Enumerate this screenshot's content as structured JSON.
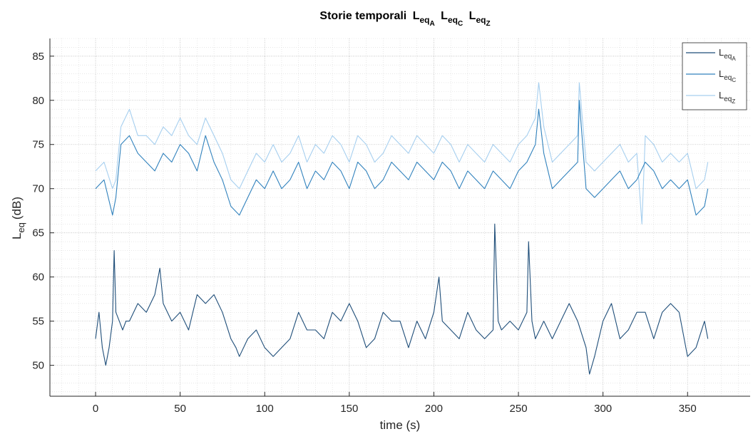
{
  "chart_data": {
    "type": "line",
    "title": {
      "prefix": "Storie temporali",
      "terms": [
        {
          "base": "L",
          "sub": "eq",
          "subsub": "A"
        },
        {
          "base": "L",
          "sub": "eq",
          "subsub": "C"
        },
        {
          "base": "L",
          "sub": "eq",
          "subsub": "Z"
        }
      ]
    },
    "xlabel": "time (s)",
    "ylabel": {
      "base": "L",
      "sub": "eq",
      "unit": "(dB)"
    },
    "xlim": [
      -27,
      387
    ],
    "ylim": [
      46.5,
      87
    ],
    "xticks": [
      0,
      50,
      100,
      150,
      200,
      250,
      300,
      350
    ],
    "yticks": [
      50,
      55,
      60,
      65,
      70,
      75,
      80,
      85
    ],
    "grid": true,
    "minor_grid": true,
    "legend_position": "top-right",
    "series": [
      {
        "name": {
          "base": "L",
          "sub": "eq",
          "subsub": "A"
        },
        "color": "#1f4e79",
        "x": [
          0,
          2,
          4,
          6,
          8,
          10,
          11,
          12,
          14,
          16,
          18,
          20,
          25,
          30,
          35,
          38,
          40,
          45,
          50,
          55,
          60,
          65,
          70,
          75,
          80,
          83,
          85,
          90,
          95,
          100,
          105,
          110,
          115,
          120,
          125,
          130,
          135,
          140,
          145,
          150,
          155,
          160,
          165,
          170,
          175,
          180,
          185,
          190,
          195,
          200,
          203,
          205,
          210,
          215,
          220,
          225,
          230,
          235,
          236,
          238,
          240,
          245,
          250,
          255,
          256,
          258,
          260,
          265,
          270,
          275,
          280,
          285,
          290,
          292,
          295,
          300,
          305,
          310,
          315,
          320,
          325,
          330,
          335,
          340,
          345,
          350,
          355,
          360,
          362
        ],
        "y": [
          53,
          56,
          52,
          50,
          52,
          55,
          63,
          56,
          55,
          54,
          55,
          55,
          57,
          56,
          58,
          61,
          57,
          55,
          56,
          54,
          58,
          57,
          58,
          56,
          53,
          52,
          51,
          53,
          54,
          52,
          51,
          52,
          53,
          56,
          54,
          54,
          53,
          56,
          55,
          57,
          55,
          52,
          53,
          56,
          55,
          55,
          52,
          55,
          53,
          56,
          60,
          55,
          54,
          53,
          56,
          54,
          53,
          54,
          66,
          55,
          54,
          55,
          54,
          56,
          64,
          55,
          53,
          55,
          53,
          55,
          57,
          55,
          52,
          49,
          51,
          55,
          57,
          53,
          54,
          56,
          56,
          53,
          56,
          57,
          56,
          51,
          52,
          55,
          53
        ]
      },
      {
        "name": {
          "base": "L",
          "sub": "eq",
          "subsub": "C"
        },
        "color": "#3182bd",
        "x": [
          0,
          5,
          10,
          12,
          15,
          20,
          25,
          30,
          35,
          40,
          45,
          50,
          55,
          60,
          65,
          70,
          75,
          80,
          85,
          90,
          95,
          100,
          105,
          110,
          115,
          120,
          125,
          130,
          135,
          140,
          145,
          150,
          155,
          160,
          165,
          170,
          175,
          180,
          185,
          190,
          195,
          200,
          205,
          210,
          215,
          220,
          225,
          230,
          235,
          240,
          245,
          250,
          255,
          260,
          262,
          265,
          270,
          275,
          280,
          285,
          286,
          290,
          295,
          300,
          305,
          310,
          315,
          320,
          325,
          330,
          335,
          340,
          345,
          350,
          355,
          360,
          362
        ],
        "y": [
          70,
          71,
          67,
          69,
          75,
          76,
          74,
          73,
          72,
          74,
          73,
          75,
          74,
          72,
          76,
          73,
          71,
          68,
          67,
          69,
          71,
          70,
          72,
          70,
          71,
          73,
          70,
          72,
          71,
          73,
          72,
          70,
          73,
          72,
          70,
          71,
          73,
          72,
          71,
          73,
          72,
          71,
          73,
          72,
          70,
          72,
          71,
          70,
          72,
          71,
          70,
          72,
          73,
          75,
          79,
          74,
          70,
          71,
          72,
          73,
          80,
          70,
          69,
          70,
          71,
          72,
          70,
          71,
          73,
          72,
          70,
          71,
          70,
          71,
          67,
          68,
          70
        ]
      },
      {
        "name": {
          "base": "L",
          "sub": "eq",
          "subsub": "Z"
        },
        "color": "#a6cfef",
        "x": [
          0,
          5,
          10,
          12,
          15,
          20,
          25,
          30,
          35,
          40,
          45,
          50,
          55,
          60,
          65,
          70,
          75,
          80,
          85,
          90,
          95,
          100,
          105,
          110,
          115,
          120,
          125,
          130,
          135,
          140,
          145,
          150,
          155,
          160,
          165,
          170,
          175,
          180,
          185,
          190,
          195,
          200,
          205,
          210,
          215,
          220,
          225,
          230,
          235,
          240,
          245,
          250,
          255,
          260,
          262,
          265,
          270,
          275,
          280,
          285,
          286,
          290,
          295,
          300,
          305,
          310,
          315,
          320,
          323,
          325,
          330,
          335,
          340,
          345,
          350,
          355,
          360,
          362
        ],
        "y": [
          72,
          73,
          70,
          71,
          77,
          79,
          76,
          76,
          75,
          77,
          76,
          78,
          76,
          75,
          78,
          76,
          74,
          71,
          70,
          72,
          74,
          73,
          75,
          73,
          74,
          76,
          73,
          75,
          74,
          76,
          75,
          73,
          76,
          75,
          73,
          74,
          76,
          75,
          74,
          76,
          75,
          74,
          76,
          75,
          73,
          75,
          74,
          73,
          75,
          74,
          73,
          75,
          76,
          78,
          82,
          77,
          73,
          74,
          75,
          76,
          82,
          73,
          72,
          73,
          74,
          75,
          73,
          74,
          66,
          76,
          75,
          73,
          74,
          73,
          74,
          70,
          71,
          73
        ]
      }
    ]
  }
}
